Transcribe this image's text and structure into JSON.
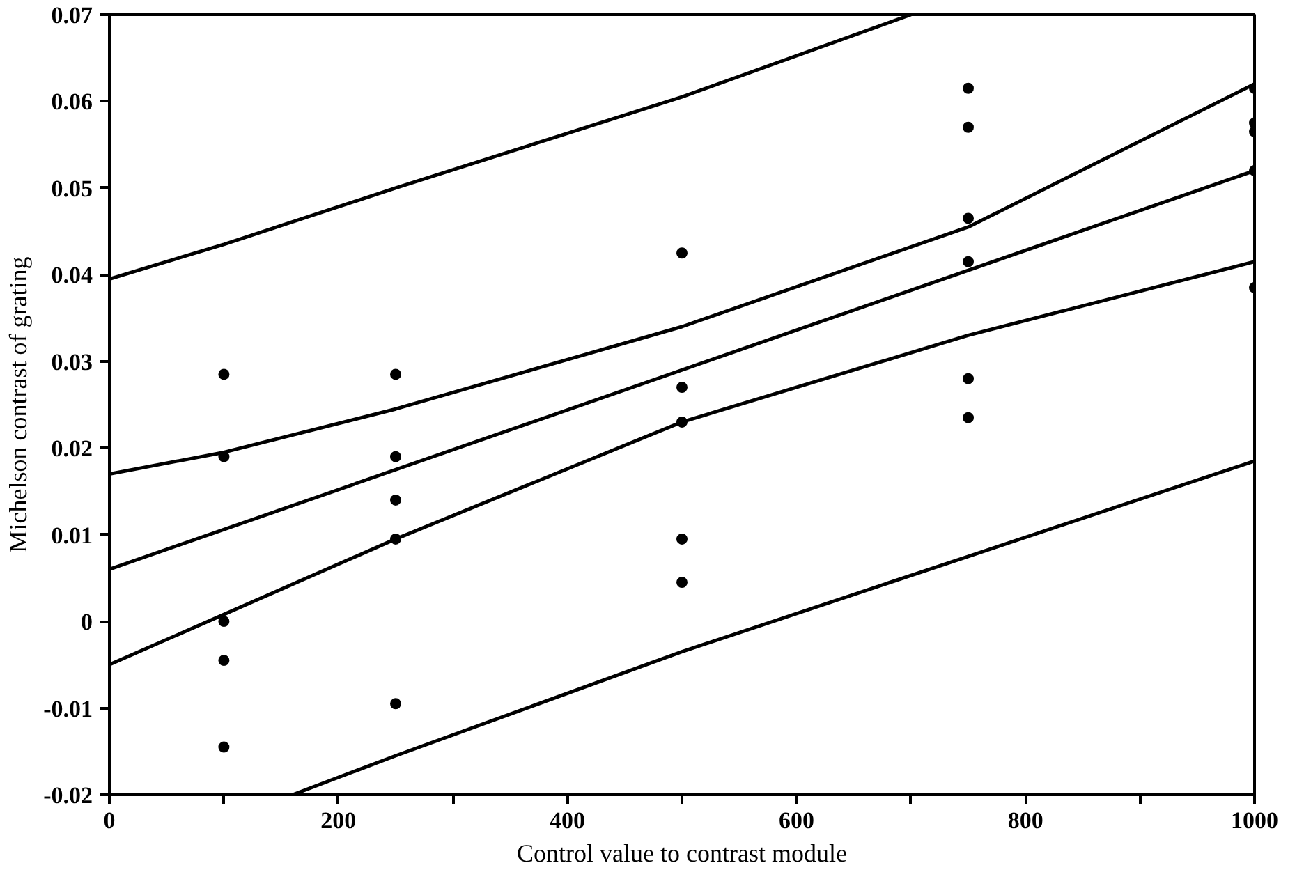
{
  "chart_data": {
    "type": "scatter",
    "xlabel": "Control value to contrast module",
    "ylabel": "Michelson contrast of grating",
    "xlim": [
      0,
      1000
    ],
    "ylim": [
      -0.02,
      0.07
    ],
    "xticks": [
      0,
      {
        "value": 100,
        "label": null
      },
      200,
      {
        "value": 300,
        "label": null
      },
      400,
      {
        "value": 500,
        "label": null
      },
      600,
      {
        "value": 700,
        "label": null
      },
      800,
      {
        "value": 900,
        "label": null
      },
      1000
    ],
    "yticks": [
      -0.02,
      -0.01,
      0,
      0.01,
      0.02,
      0.03,
      0.04,
      0.05,
      0.06,
      0.07
    ],
    "grid": false,
    "marker": "circle",
    "series": [
      {
        "color": "#000000",
        "x": [
          100,
          100,
          100,
          100,
          100,
          250,
          250,
          250,
          250,
          250,
          500,
          500,
          500,
          500,
          500,
          750,
          750,
          750,
          750,
          750,
          750,
          1000,
          1000,
          1000,
          1000,
          1000
        ],
        "values": [
          0.0285,
          0.019,
          0,
          -0.0045,
          -0.0145,
          0.0285,
          0.019,
          0.014,
          0.0095,
          -0.0095,
          0.0425,
          0.027,
          0.023,
          0.0095,
          0.0045,
          0.0615,
          0.057,
          0.0465,
          0.0415,
          0.028,
          0.0235,
          0.0615,
          0.0575,
          0.0565,
          0.052,
          0.0385
        ]
      },
      {
        "type": "line",
        "color": "#000000",
        "marker": "none",
        "line_style": "solid",
        "x": [
          0,
          100,
          250,
          500,
          700
        ],
        "values": [
          0.0395,
          0.0435,
          0.05,
          0.0605,
          0.07
        ]
      },
      {
        "type": "line",
        "color": "#000000",
        "marker": "none",
        "line_style": "solid",
        "x": [
          0,
          100,
          250,
          500,
          750,
          1000
        ],
        "values": [
          0.017,
          0.0195,
          0.0245,
          0.034,
          0.0455,
          0.062
        ]
      },
      {
        "type": "line",
        "color": "#000000",
        "marker": "none",
        "line_style": "solid",
        "x": [
          0,
          1000
        ],
        "values": [
          0.006,
          0.052
        ]
      },
      {
        "type": "line",
        "color": "#000000",
        "marker": "none",
        "line_style": "solid",
        "x": [
          0,
          250,
          500,
          750,
          1000
        ],
        "values": [
          -0.005,
          0.0095,
          0.023,
          0.033,
          0.0415
        ]
      },
      {
        "type": "line",
        "color": "#000000",
        "marker": "none",
        "line_style": "solid",
        "x": [
          160,
          250,
          500,
          750,
          1000
        ],
        "values": [
          -0.02,
          -0.0155,
          -0.0035,
          0.0075,
          0.0185
        ]
      }
    ]
  }
}
